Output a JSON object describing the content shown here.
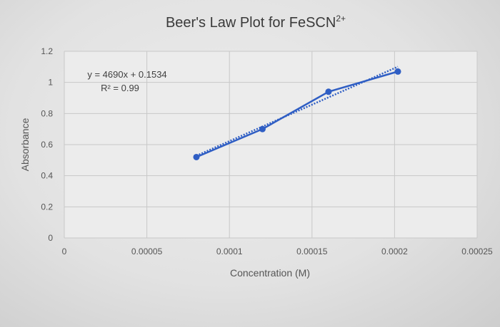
{
  "chart_data": {
    "type": "scatter",
    "title": "Beer's Law Plot for FeSCN",
    "title_superscript": "2+",
    "xlabel": "Concentration (M)",
    "ylabel": "Absorbance",
    "xlim": [
      0,
      0.00025
    ],
    "ylim": [
      0,
      1.2
    ],
    "x_ticks": [
      "0",
      "0.00005",
      "0.0001",
      "0.00015",
      "0.0002",
      "0.00025"
    ],
    "y_ticks": [
      "0",
      "0.2",
      "0.4",
      "0.6",
      "0.8",
      "1",
      "1.2"
    ],
    "grid": true,
    "series": [
      {
        "points": [
          {
            "x": 8e-05,
            "y": 0.52
          },
          {
            "x": 0.00012,
            "y": 0.7
          },
          {
            "x": 0.00016,
            "y": 0.94
          },
          {
            "x": 0.000202,
            "y": 1.07
          }
        ],
        "color": "#2f5ec4",
        "connected": true
      }
    ],
    "trendline": {
      "style": "dotted",
      "color": "#2f5ec4",
      "equation": "y = 4690x + 0.1534",
      "r_squared": "R² = 0.99",
      "slope": 4690,
      "intercept": 0.1534
    }
  }
}
